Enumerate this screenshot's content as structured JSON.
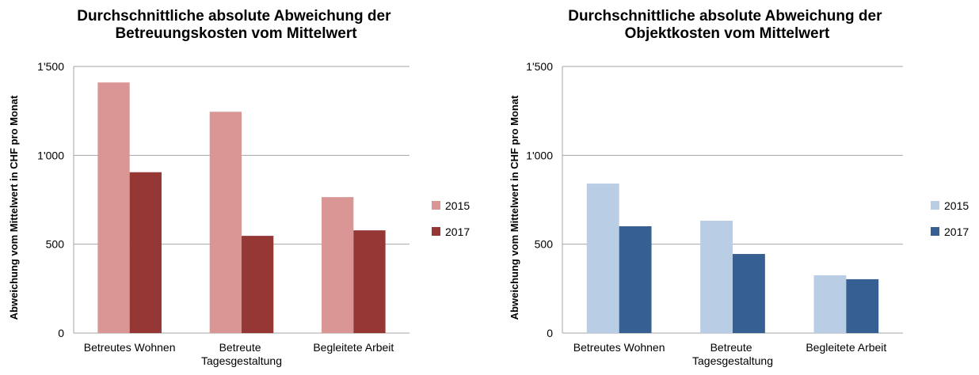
{
  "chart_data": [
    {
      "type": "bar",
      "title": "Durchschnittliche absolute Abweichung der Betreuungskosten vom Mittelwert",
      "y_label": "Abweichung vom Mittelwert in CHF pro Monat",
      "categories": [
        "Betreutes Wohnen",
        "Betreute Tagesgestaltung",
        "Begleitete Arbeit"
      ],
      "series": [
        {
          "name": "2015",
          "color": "#d99694",
          "values": [
            1410,
            1245,
            765
          ]
        },
        {
          "name": "2017",
          "color": "#953735",
          "values": [
            905,
            547,
            578
          ]
        }
      ],
      "ylim": [
        0,
        1500
      ],
      "yticks": [
        0,
        500,
        {
          "value": 1000,
          "label": "1'000"
        },
        {
          "value": 1500,
          "label": "1'500"
        }
      ],
      "grid": true,
      "legend": "right"
    },
    {
      "type": "bar",
      "title": "Durchschnittliche absolute Abweichung der Objektkosten vom Mittelwert",
      "y_label": "Abweichung vom Mittelwert in CHF pro Monat",
      "categories": [
        "Betreutes Wohnen",
        "Betreute Tagesgestaltung",
        "Begleitete Arbeit"
      ],
      "series": [
        {
          "name": "2015",
          "color": "#b9cde5",
          "values": [
            841,
            632,
            325
          ]
        },
        {
          "name": "2017",
          "color": "#376092",
          "values": [
            601,
            445,
            303
          ]
        }
      ],
      "ylim": [
        0,
        1500
      ],
      "yticks": [
        0,
        500,
        {
          "value": 1000,
          "label": "1'000"
        },
        {
          "value": 1500,
          "label": "1'500"
        }
      ],
      "grid": true,
      "legend": "right"
    }
  ]
}
